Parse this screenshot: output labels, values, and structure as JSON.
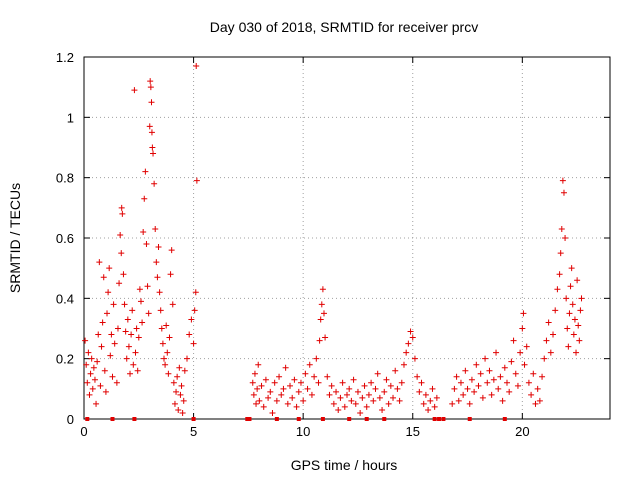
{
  "chart_data": {
    "type": "scatter",
    "title": "Day 030 of 2018, SRMTID for receiver prcv",
    "xlabel": "GPS time / hours",
    "ylabel": "SRMTID / TECUs",
    "xlim": [
      0,
      24
    ],
    "ylim": [
      0,
      1.2
    ],
    "xticks": [
      0,
      5,
      10,
      15,
      20
    ],
    "yticks": [
      0,
      0.2,
      0.4,
      0.6,
      0.8,
      1,
      1.2
    ],
    "x_tick_labels": [
      "0",
      "5",
      "10",
      "15",
      "20"
    ],
    "y_tick_labels": [
      "0",
      "0.2",
      "0.4",
      "0.6",
      "0.8",
      "1",
      "1.2"
    ],
    "grid": true,
    "marker": "+",
    "color": "#e00000",
    "series": [
      {
        "name": "SRMTID",
        "points": [
          [
            0.05,
            0.26
          ],
          [
            0.1,
            0.18
          ],
          [
            0.15,
            0.12
          ],
          [
            0.2,
            0.22
          ],
          [
            0.25,
            0.08
          ],
          [
            0.3,
            0.15
          ],
          [
            0.35,
            0.2
          ],
          [
            0.4,
            0.1
          ],
          [
            0.45,
            0.17
          ],
          [
            0.5,
            0.13
          ],
          [
            0.55,
            0.05
          ],
          [
            0.6,
            0.19
          ],
          [
            0.65,
            0.28
          ],
          [
            0.7,
            0.52
          ],
          [
            0.75,
            0.11
          ],
          [
            0.8,
            0.24
          ],
          [
            0.85,
            0.32
          ],
          [
            0.9,
            0.47
          ],
          [
            0.95,
            0.16
          ],
          [
            1.0,
            0.09
          ],
          [
            1.05,
            0.35
          ],
          [
            1.1,
            0.42
          ],
          [
            1.15,
            0.5
          ],
          [
            1.2,
            0.21
          ],
          [
            1.25,
            0.28
          ],
          [
            1.3,
            0.14
          ],
          [
            1.35,
            0.38
          ],
          [
            1.4,
            0.25
          ],
          [
            1.5,
            0.12
          ],
          [
            1.55,
            0.3
          ],
          [
            1.6,
            0.45
          ],
          [
            1.65,
            0.61
          ],
          [
            1.7,
            0.55
          ],
          [
            1.72,
            0.7
          ],
          [
            1.75,
            0.68
          ],
          [
            1.8,
            0.48
          ],
          [
            1.85,
            0.38
          ],
          [
            1.9,
            0.29
          ],
          [
            1.95,
            0.2
          ],
          [
            2.0,
            0.33
          ],
          [
            2.05,
            0.24
          ],
          [
            2.1,
            0.15
          ],
          [
            2.15,
            0.28
          ],
          [
            2.2,
            0.36
          ],
          [
            2.25,
            0.18
          ],
          [
            2.3,
            1.09
          ],
          [
            2.35,
            0.22
          ],
          [
            2.4,
            0.3
          ],
          [
            2.45,
            0.16
          ],
          [
            2.5,
            0.27
          ],
          [
            2.55,
            0.43
          ],
          [
            2.6,
            0.39
          ],
          [
            2.65,
            0.32
          ],
          [
            2.7,
            0.62
          ],
          [
            2.75,
            0.73
          ],
          [
            2.8,
            0.82
          ],
          [
            2.85,
            0.58
          ],
          [
            2.9,
            0.44
          ],
          [
            2.95,
            0.35
          ],
          [
            3.0,
            0.97
          ],
          [
            3.02,
            1.12
          ],
          [
            3.05,
            1.1
          ],
          [
            3.08,
            1.05
          ],
          [
            3.1,
            0.95
          ],
          [
            3.12,
            0.9
          ],
          [
            3.15,
            0.88
          ],
          [
            3.2,
            0.78
          ],
          [
            3.25,
            0.63
          ],
          [
            3.3,
            0.52
          ],
          [
            3.35,
            0.47
          ],
          [
            3.4,
            0.57
          ],
          [
            3.45,
            0.42
          ],
          [
            3.5,
            0.36
          ],
          [
            3.55,
            0.3
          ],
          [
            3.6,
            0.25
          ],
          [
            3.65,
            0.2
          ],
          [
            3.7,
            0.18
          ],
          [
            3.75,
            0.31
          ],
          [
            3.8,
            0.22
          ],
          [
            3.85,
            0.15
          ],
          [
            3.9,
            0.27
          ],
          [
            3.95,
            0.48
          ],
          [
            4.0,
            0.56
          ],
          [
            4.05,
            0.38
          ],
          [
            4.1,
            0.12
          ],
          [
            4.15,
            0.05
          ],
          [
            4.2,
            0.09
          ],
          [
            4.25,
            0.14
          ],
          [
            4.3,
            0.03
          ],
          [
            4.35,
            0.17
          ],
          [
            4.4,
            0.08
          ],
          [
            4.45,
            0.11
          ],
          [
            4.5,
            0.02
          ],
          [
            4.55,
            0.06
          ],
          [
            4.6,
            0.16
          ],
          [
            4.7,
            0.2
          ],
          [
            4.8,
            0.28
          ],
          [
            4.9,
            0.33
          ],
          [
            5.0,
            0.25
          ],
          [
            5.05,
            0.36
          ],
          [
            5.1,
            0.42
          ],
          [
            5.12,
            1.17
          ],
          [
            5.15,
            0.79
          ],
          [
            7.7,
            0.12
          ],
          [
            7.75,
            0.08
          ],
          [
            7.8,
            0.15
          ],
          [
            7.85,
            0.05
          ],
          [
            7.9,
            0.1
          ],
          [
            7.95,
            0.18
          ],
          [
            8.0,
            0.06
          ],
          [
            8.1,
            0.11
          ],
          [
            8.2,
            0.04
          ],
          [
            8.3,
            0.13
          ],
          [
            8.4,
            0.07
          ],
          [
            8.5,
            0.09
          ],
          [
            8.6,
            0.02
          ],
          [
            8.7,
            0.12
          ],
          [
            8.8,
            0.06
          ],
          [
            8.9,
            0.14
          ],
          [
            9.0,
            0.08
          ],
          [
            9.1,
            0.1
          ],
          [
            9.2,
            0.17
          ],
          [
            9.3,
            0.05
          ],
          [
            9.4,
            0.11
          ],
          [
            9.5,
            0.07
          ],
          [
            9.6,
            0.13
          ],
          [
            9.7,
            0.04
          ],
          [
            9.8,
            0.09
          ],
          [
            9.9,
            0.12
          ],
          [
            10.0,
            0.06
          ],
          [
            10.1,
            0.15
          ],
          [
            10.2,
            0.1
          ],
          [
            10.3,
            0.18
          ],
          [
            10.4,
            0.08
          ],
          [
            10.5,
            0.14
          ],
          [
            10.6,
            0.2
          ],
          [
            10.7,
            0.12
          ],
          [
            10.75,
            0.26
          ],
          [
            10.8,
            0.33
          ],
          [
            10.85,
            0.38
          ],
          [
            10.9,
            0.43
          ],
          [
            10.95,
            0.35
          ],
          [
            11.0,
            0.27
          ],
          [
            11.1,
            0.14
          ],
          [
            11.2,
            0.08
          ],
          [
            11.3,
            0.11
          ],
          [
            11.4,
            0.05
          ],
          [
            11.5,
            0.09
          ],
          [
            11.6,
            0.03
          ],
          [
            11.7,
            0.07
          ],
          [
            11.8,
            0.12
          ],
          [
            11.9,
            0.04
          ],
          [
            12.0,
            0.08
          ],
          [
            12.1,
            0.1
          ],
          [
            12.2,
            0.06
          ],
          [
            12.3,
            0.13
          ],
          [
            12.4,
            0.05
          ],
          [
            12.5,
            0.09
          ],
          [
            12.6,
            0.02
          ],
          [
            12.7,
            0.07
          ],
          [
            12.8,
            0.11
          ],
          [
            12.9,
            0.04
          ],
          [
            13.0,
            0.08
          ],
          [
            13.1,
            0.12
          ],
          [
            13.2,
            0.06
          ],
          [
            13.3,
            0.1
          ],
          [
            13.4,
            0.15
          ],
          [
            13.5,
            0.07
          ],
          [
            13.6,
            0.03
          ],
          [
            13.7,
            0.09
          ],
          [
            13.8,
            0.13
          ],
          [
            13.9,
            0.05
          ],
          [
            14.0,
            0.11
          ],
          [
            14.1,
            0.07
          ],
          [
            14.2,
            0.16
          ],
          [
            14.3,
            0.1
          ],
          [
            14.4,
            0.06
          ],
          [
            14.5,
            0.12
          ],
          [
            14.6,
            0.18
          ],
          [
            14.7,
            0.22
          ],
          [
            14.8,
            0.25
          ],
          [
            14.9,
            0.29
          ],
          [
            15.0,
            0.27
          ],
          [
            15.1,
            0.2
          ],
          [
            15.2,
            0.14
          ],
          [
            15.3,
            0.09
          ],
          [
            15.4,
            0.12
          ],
          [
            15.5,
            0.05
          ],
          [
            15.6,
            0.08
          ],
          [
            15.7,
            0.03
          ],
          [
            15.8,
            0.06
          ],
          [
            15.9,
            0.1
          ],
          [
            16.0,
            0.04
          ],
          [
            16.1,
            0.07
          ],
          [
            16.8,
            0.05
          ],
          [
            16.9,
            0.1
          ],
          [
            17.0,
            0.14
          ],
          [
            17.1,
            0.06
          ],
          [
            17.2,
            0.12
          ],
          [
            17.3,
            0.08
          ],
          [
            17.4,
            0.16
          ],
          [
            17.5,
            0.1
          ],
          [
            17.6,
            0.05
          ],
          [
            17.7,
            0.13
          ],
          [
            17.8,
            0.09
          ],
          [
            17.9,
            0.18
          ],
          [
            18.0,
            0.11
          ],
          [
            18.1,
            0.15
          ],
          [
            18.2,
            0.07
          ],
          [
            18.3,
            0.2
          ],
          [
            18.4,
            0.12
          ],
          [
            18.5,
            0.16
          ],
          [
            18.6,
            0.08
          ],
          [
            18.7,
            0.13
          ],
          [
            18.8,
            0.22
          ],
          [
            18.9,
            0.1
          ],
          [
            19.0,
            0.14
          ],
          [
            19.1,
            0.06
          ],
          [
            19.2,
            0.17
          ],
          [
            19.3,
            0.12
          ],
          [
            19.4,
            0.09
          ],
          [
            19.5,
            0.19
          ],
          [
            19.6,
            0.26
          ],
          [
            19.7,
            0.15
          ],
          [
            19.8,
            0.11
          ],
          [
            19.9,
            0.22
          ],
          [
            20.0,
            0.3
          ],
          [
            20.05,
            0.35
          ],
          [
            20.1,
            0.18
          ],
          [
            20.2,
            0.24
          ],
          [
            20.3,
            0.12
          ],
          [
            20.4,
            0.08
          ],
          [
            20.5,
            0.15
          ],
          [
            20.6,
            0.05
          ],
          [
            20.7,
            0.1
          ],
          [
            20.8,
            0.06
          ],
          [
            20.9,
            0.14
          ],
          [
            21.0,
            0.2
          ],
          [
            21.1,
            0.26
          ],
          [
            21.2,
            0.32
          ],
          [
            21.3,
            0.22
          ],
          [
            21.4,
            0.28
          ],
          [
            21.5,
            0.36
          ],
          [
            21.6,
            0.43
          ],
          [
            21.7,
            0.48
          ],
          [
            21.75,
            0.55
          ],
          [
            21.8,
            0.63
          ],
          [
            21.85,
            0.79
          ],
          [
            21.9,
            0.75
          ],
          [
            21.95,
            0.6
          ],
          [
            22.0,
            0.4
          ],
          [
            22.05,
            0.3
          ],
          [
            22.1,
            0.24
          ],
          [
            22.15,
            0.35
          ],
          [
            22.2,
            0.44
          ],
          [
            22.25,
            0.5
          ],
          [
            22.3,
            0.38
          ],
          [
            22.35,
            0.28
          ],
          [
            22.4,
            0.33
          ],
          [
            22.45,
            0.22
          ],
          [
            22.5,
            0.46
          ],
          [
            22.55,
            0.31
          ],
          [
            22.6,
            0.26
          ],
          [
            22.65,
            0.36
          ],
          [
            22.7,
            0.4
          ]
        ],
        "zero_markers_x": [
          0.15,
          1.3,
          2.3,
          5.0,
          7.45,
          7.55,
          8.8,
          9.8,
          10.9,
          12.1,
          12.9,
          13.7,
          16.0,
          16.2,
          16.4,
          17.6,
          19.2
        ]
      }
    ]
  }
}
